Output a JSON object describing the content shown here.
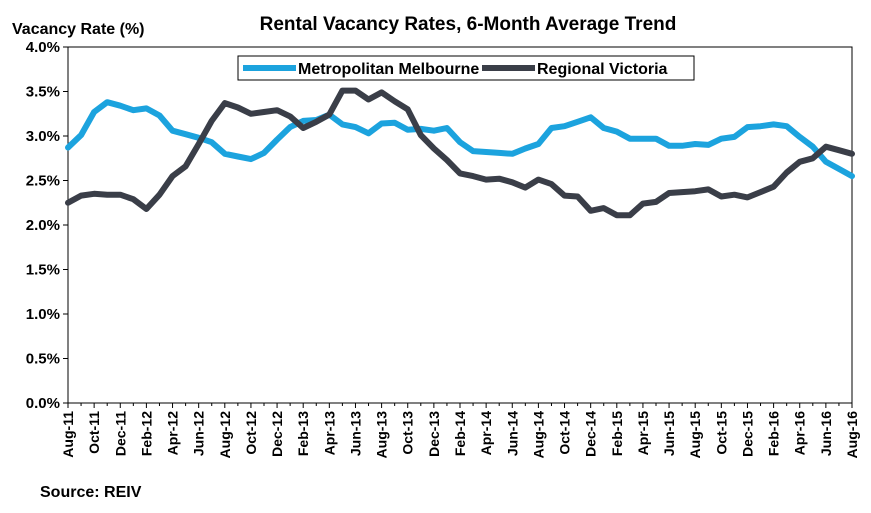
{
  "chart_data": {
    "type": "line",
    "title": "Rental Vacancy Rates, 6-Month Average Trend",
    "ylabel": "Vacancy Rate (%)",
    "xlabel": "",
    "ylim": [
      0,
      4
    ],
    "y_ticks": [
      0,
      0.5,
      1.0,
      1.5,
      2.0,
      2.5,
      3.0,
      3.5,
      4.0
    ],
    "y_tick_labels": [
      "0.0%",
      "0.5%",
      "1.0%",
      "1.5%",
      "2.0%",
      "2.5%",
      "3.0%",
      "3.5%",
      "4.0%"
    ],
    "categories": [
      "Aug-11",
      "Sep-11",
      "Oct-11",
      "Nov-11",
      "Dec-11",
      "Jan-12",
      "Feb-12",
      "Mar-12",
      "Apr-12",
      "May-12",
      "Jun-12",
      "Jul-12",
      "Aug-12",
      "Sep-12",
      "Oct-12",
      "Nov-12",
      "Dec-12",
      "Jan-13",
      "Feb-13",
      "Mar-13",
      "Apr-13",
      "May-13",
      "Jun-13",
      "Jul-13",
      "Aug-13",
      "Sep-13",
      "Oct-13",
      "Nov-13",
      "Dec-13",
      "Jan-14",
      "Feb-14",
      "Mar-14",
      "Apr-14",
      "May-14",
      "Jun-14",
      "Jul-14",
      "Aug-14",
      "Sep-14",
      "Oct-14",
      "Nov-14",
      "Dec-14",
      "Jan-15",
      "Feb-15",
      "Mar-15",
      "Apr-15",
      "May-15",
      "Jun-15",
      "Jul-15",
      "Aug-15",
      "Sep-15",
      "Oct-15",
      "Nov-15",
      "Dec-15",
      "Jan-16",
      "Feb-16",
      "Mar-16",
      "Apr-16",
      "May-16",
      "Jun-16",
      "Jul-16",
      "Aug-16"
    ],
    "x_tick_labels": [
      "Aug-11",
      "Oct-11",
      "Dec-11",
      "Feb-12",
      "Apr-12",
      "Jun-12",
      "Aug-12",
      "Oct-12",
      "Dec-12",
      "Feb-13",
      "Apr-13",
      "Jun-13",
      "Aug-13",
      "Oct-13",
      "Dec-13",
      "Feb-14",
      "Apr-14",
      "Jun-14",
      "Aug-14",
      "Oct-14",
      "Dec-14",
      "Feb-15",
      "Apr-15",
      "Jun-15",
      "Aug-15",
      "Oct-15",
      "Dec-15",
      "Feb-16",
      "Apr-16",
      "Jun-16",
      "Aug-16"
    ],
    "series": [
      {
        "name": "Metropolitan Melbourne",
        "color": "#1CA3DE",
        "values": [
          2.87,
          3.01,
          3.27,
          3.38,
          3.34,
          3.29,
          3.31,
          3.23,
          3.06,
          3.02,
          2.98,
          2.93,
          2.8,
          2.77,
          2.74,
          2.81,
          2.96,
          3.1,
          3.17,
          3.18,
          3.24,
          3.13,
          3.1,
          3.03,
          3.14,
          3.15,
          3.07,
          3.08,
          3.06,
          3.09,
          2.93,
          2.83,
          2.82,
          2.81,
          2.8,
          2.86,
          2.91,
          3.09,
          3.11,
          3.16,
          3.21,
          3.09,
          3.05,
          2.97,
          2.97,
          2.97,
          2.89,
          2.89,
          2.91,
          2.9,
          2.97,
          2.99,
          3.1,
          3.11,
          3.13,
          3.11,
          2.99,
          2.88,
          2.71,
          2.63,
          2.55
        ]
      },
      {
        "name": "Regional Victoria",
        "color": "#3A3E48",
        "values": [
          2.25,
          2.33,
          2.35,
          2.34,
          2.34,
          2.29,
          2.18,
          2.34,
          2.55,
          2.66,
          2.91,
          3.17,
          3.37,
          3.32,
          3.25,
          3.27,
          3.29,
          3.22,
          3.09,
          3.16,
          3.24,
          3.51,
          3.51,
          3.41,
          3.49,
          3.39,
          3.3,
          3.01,
          2.86,
          2.73,
          2.58,
          2.55,
          2.51,
          2.52,
          2.48,
          2.42,
          2.51,
          2.46,
          2.33,
          2.32,
          2.16,
          2.19,
          2.11,
          2.11,
          2.24,
          2.26,
          2.36,
          2.37,
          2.38,
          2.4,
          2.32,
          2.34,
          2.31,
          2.37,
          2.43,
          2.59,
          2.71,
          2.75,
          2.88,
          2.84,
          2.8
        ]
      }
    ],
    "legend_position": "top",
    "grid": false
  },
  "footer": {
    "source": "Source:  REIV"
  }
}
